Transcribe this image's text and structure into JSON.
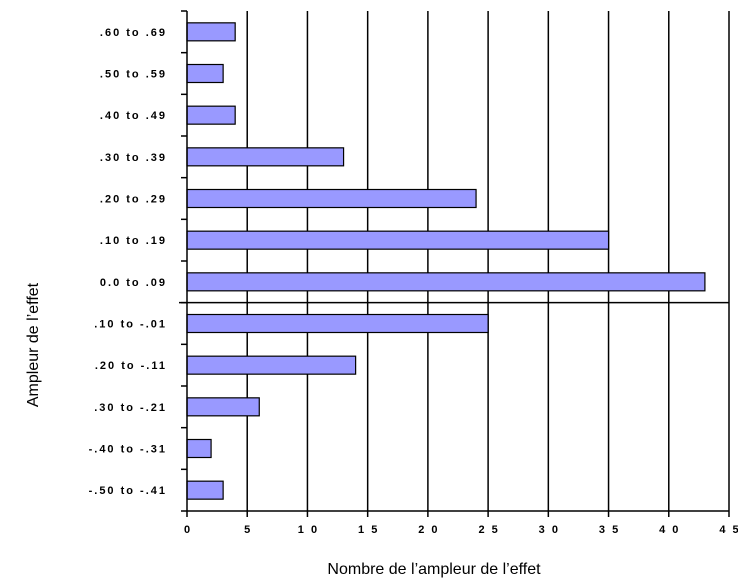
{
  "chart_data": {
    "type": "bar",
    "orientation": "horizontal",
    "title": "",
    "xlabel": "Nombre de l’ampleur de l’effet",
    "ylabel": "Ampleur de l’effet",
    "xlim": [
      0,
      45
    ],
    "xticks": [
      0,
      5,
      10,
      15,
      20,
      25,
      30,
      35,
      40,
      45
    ],
    "grid": "vertical",
    "bar_color": "#9999ff",
    "categories": [
      ".60 to .69",
      ".50 to .59",
      ".40 to .49",
      ".30 to .39",
      ".20 to .29",
      ".10 to .19",
      "0.0 to .09",
      ".10 to -.01",
      ".20 to -.11",
      ".30 to -.21",
      "-.40 to -.31",
      "-.50 to -.41"
    ],
    "values": [
      4,
      3,
      4,
      13,
      24,
      35,
      43,
      25,
      14,
      6,
      2,
      3
    ]
  }
}
